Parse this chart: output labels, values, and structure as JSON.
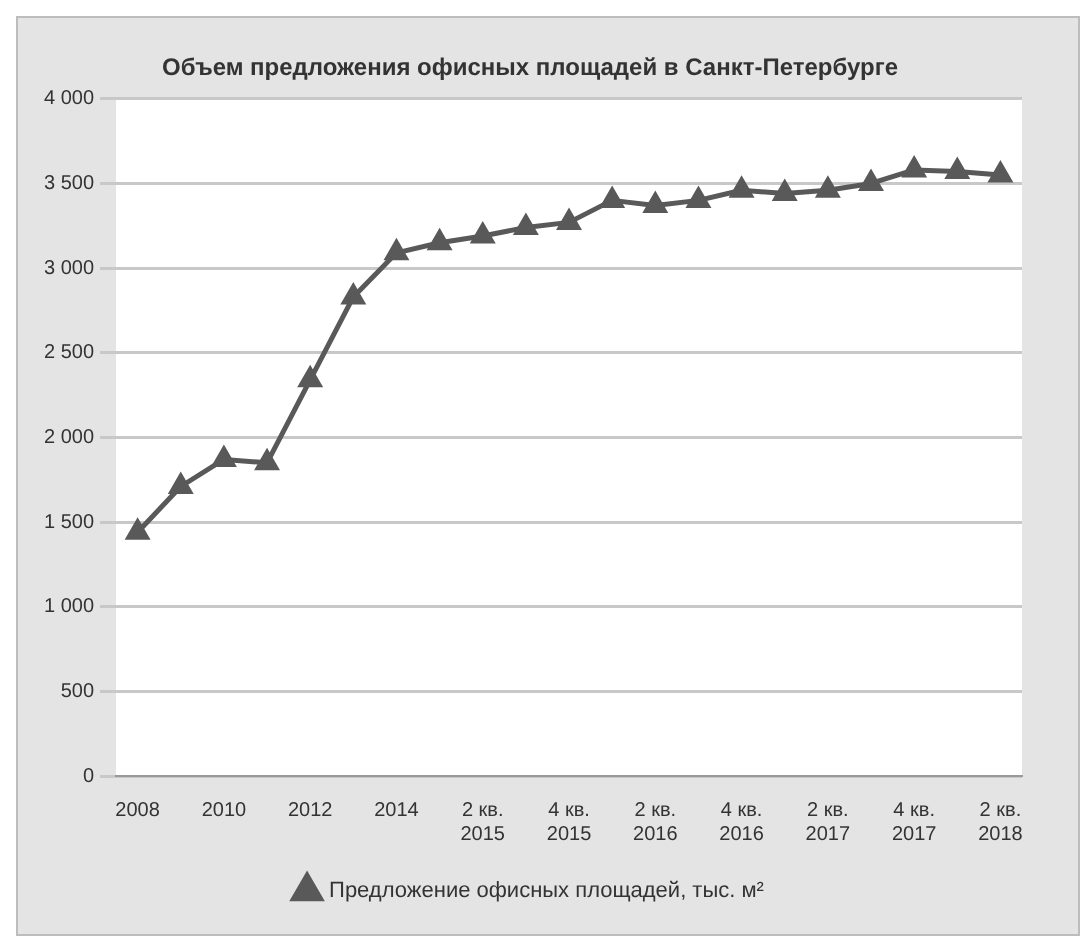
{
  "chart_data": {
    "type": "line",
    "title": "Объем предложения офисных площадей в Санкт-Петербурге",
    "categories": [
      "2008",
      null,
      "2010",
      null,
      "2012",
      null,
      "2014",
      null,
      "2 кв. 2015",
      null,
      "4 кв. 2015",
      null,
      "2 кв. 2016",
      null,
      "4 кв. 2016",
      null,
      "2 кв. 2017",
      null,
      "4 кв. 2017",
      null,
      "2 кв. 2018"
    ],
    "series": [
      {
        "name": "Предложение офисных площадей, тыс. м²",
        "color": "#595959",
        "values": [
          1440,
          1710,
          1870,
          1850,
          2340,
          2830,
          3090,
          3150,
          3190,
          3240,
          3270,
          3400,
          3370,
          3400,
          3460,
          3440,
          3460,
          3500,
          3580,
          3570,
          3550
        ]
      }
    ],
    "ylim": [
      0,
      4000
    ],
    "yticks": [
      0,
      {
        "value": 500,
        "label": "500"
      },
      {
        "value": 1000,
        "label": "1 000"
      },
      {
        "value": 1500,
        "label": "1 500"
      },
      {
        "value": 2000,
        "label": "2 000"
      },
      {
        "value": 2500,
        "label": "2 500"
      },
      {
        "value": 3000,
        "label": "3 000"
      },
      {
        "value": 3500,
        "label": "3 500"
      },
      {
        "value": 4000,
        "label": "4 000"
      }
    ],
    "grid": "y",
    "legend": "bottom",
    "marker": "triangle",
    "line_style": "solid"
  }
}
